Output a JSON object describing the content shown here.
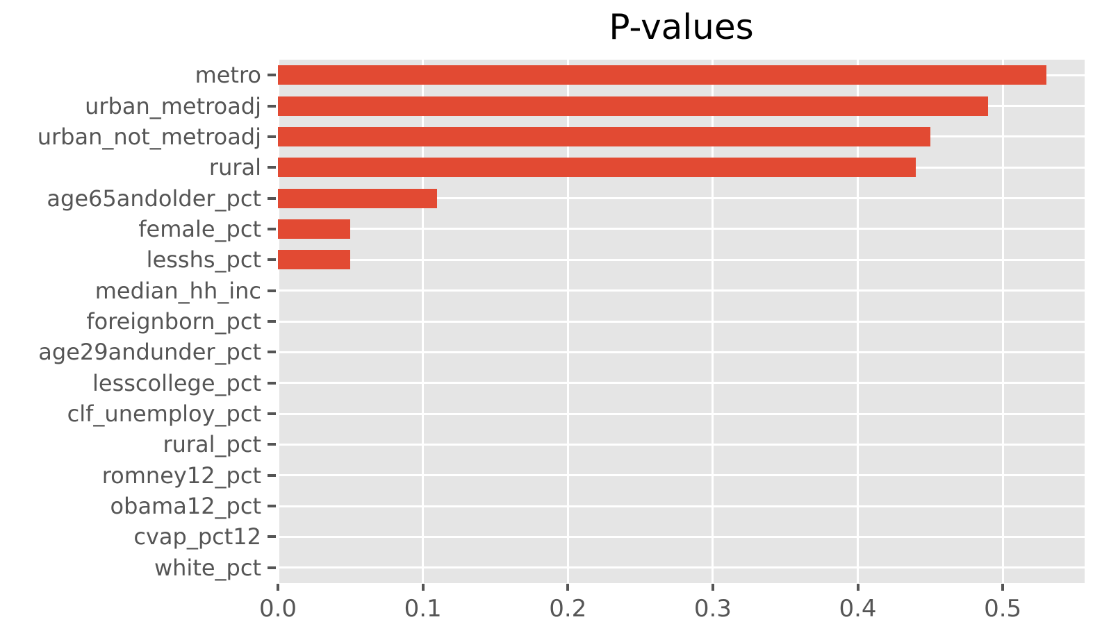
{
  "chart_data": {
    "type": "bar",
    "orientation": "horizontal",
    "title": "P-values",
    "xlabel": "",
    "ylabel": "",
    "categories": [
      "metro",
      "urban_metroadj",
      "urban_not_metroadj",
      "rural",
      "age65andolder_pct",
      "female_pct",
      "lesshs_pct",
      "median_hh_inc",
      "foreignborn_pct",
      "age29andunder_pct",
      "lesscollege_pct",
      "clf_unemploy_pct",
      "rural_pct",
      "romney12_pct",
      "obama12_pct",
      "cvap_pct12",
      "white_pct"
    ],
    "values": [
      0.53,
      0.49,
      0.45,
      0.44,
      0.11,
      0.05,
      0.05,
      0,
      0,
      0,
      0,
      0,
      0,
      0,
      0,
      0,
      0
    ],
    "xlim": [
      0,
      0.5565
    ],
    "xticks": [
      0,
      0.1,
      0.2,
      0.3,
      0.4,
      0.5
    ],
    "xtick_labels": [
      "0.0",
      "0.1",
      "0.2",
      "0.3",
      "0.4",
      "0.5"
    ],
    "grid": true,
    "legend": false,
    "style": {
      "bar_color": "#E24A33",
      "panel_background": "#E5E5E5",
      "grid_color": "#FFFFFF",
      "tick_color": "#555555",
      "tick_text_color": "#555555",
      "title_color": "#000000"
    }
  }
}
